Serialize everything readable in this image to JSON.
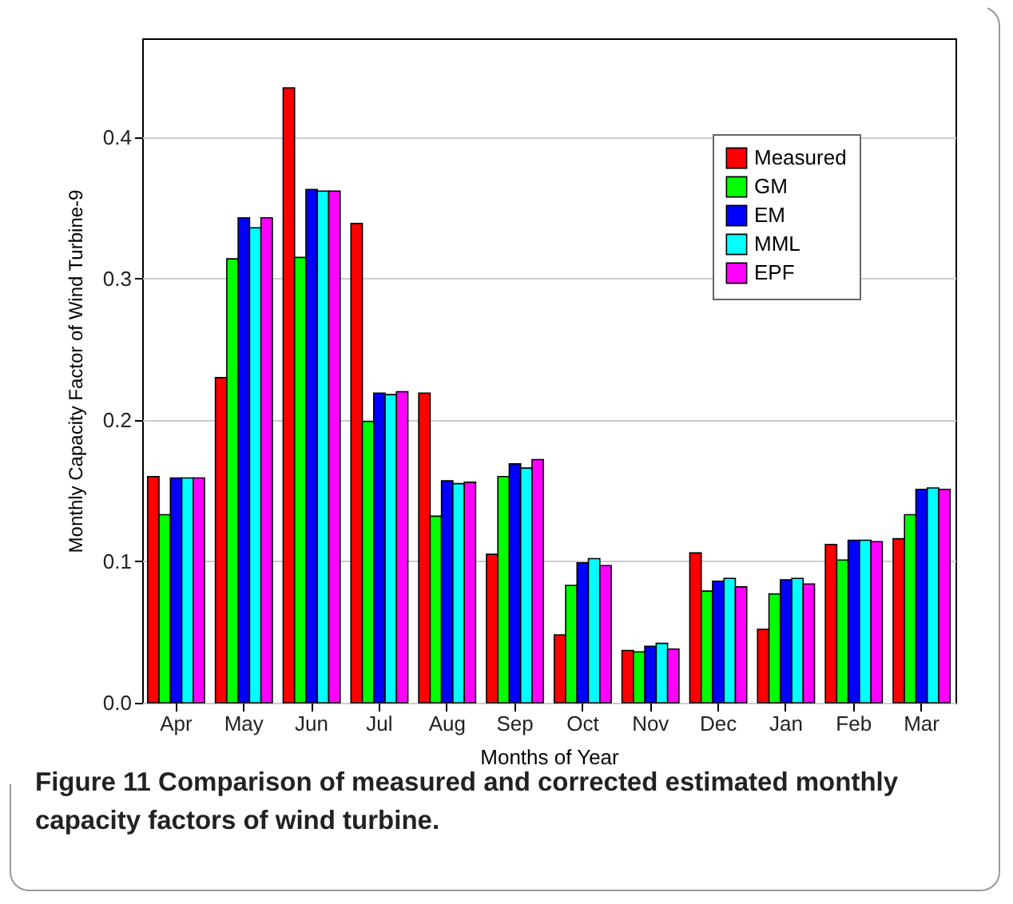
{
  "chart_data": {
    "type": "bar",
    "xlabel": "Months of Year",
    "ylabel": "Monthly Capacity Factor of Wind Turbine-9",
    "categories": [
      "Apr",
      "May",
      "Jun",
      "Jul",
      "Aug",
      "Sep",
      "Oct",
      "Nov",
      "Dec",
      "Jan",
      "Feb",
      "Mar"
    ],
    "series": [
      {
        "name": "Measured",
        "color": "#ff0000",
        "values": [
          0.16,
          0.23,
          0.435,
          0.339,
          0.219,
          0.105,
          0.048,
          0.037,
          0.106,
          0.052,
          0.112,
          0.116
        ]
      },
      {
        "name": "GM",
        "color": "#00ff00",
        "values": [
          0.133,
          0.314,
          0.315,
          0.199,
          0.132,
          0.16,
          0.083,
          0.036,
          0.079,
          0.077,
          0.101,
          0.133
        ]
      },
      {
        "name": "EM",
        "color": "#0000ff",
        "values": [
          0.159,
          0.343,
          0.363,
          0.219,
          0.157,
          0.169,
          0.099,
          0.04,
          0.086,
          0.087,
          0.115,
          0.151
        ]
      },
      {
        "name": "MML",
        "color": "#00ffff",
        "values": [
          0.159,
          0.336,
          0.362,
          0.218,
          0.155,
          0.166,
          0.102,
          0.042,
          0.088,
          0.088,
          0.115,
          0.152
        ]
      },
      {
        "name": "EPF",
        "color": "#ff00ff",
        "values": [
          0.159,
          0.343,
          0.362,
          0.22,
          0.156,
          0.172,
          0.097,
          0.038,
          0.082,
          0.084,
          0.114,
          0.151
        ]
      }
    ],
    "ylim": [
      0,
      0.47
    ],
    "yticks": [
      {
        "value": 0,
        "label": "0.0"
      },
      0.1,
      0.2,
      0.3,
      0.4
    ],
    "grid": "y",
    "legend": "top right",
    "annotations": [
      "Figure 11 Comparison of measured and corrected estimated monthly capacity factors of wind turbine."
    ]
  }
}
